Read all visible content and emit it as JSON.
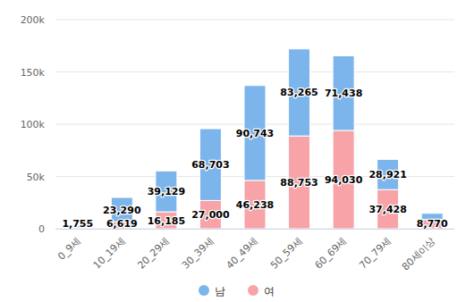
{
  "chart_data": {
    "type": "bar",
    "stacked": true,
    "data_labels": true,
    "grid": true,
    "legend": "bottom",
    "categories": [
      "0_9세",
      "10_19세",
      "20_29세",
      "30_39세",
      "40_49세",
      "50_59세",
      "60_69세",
      "70_79세",
      "80세이상"
    ],
    "series": [
      {
        "name": "남",
        "color": "#7cb5ec",
        "values": [
          1755,
          23290,
          39129,
          68703,
          90743,
          83265,
          71438,
          28921,
          6000
        ],
        "value_labels": [
          "1,755",
          "23,290",
          "39,129",
          "68,703",
          "90,743",
          "83,265",
          "71,438",
          "28,921",
          null
        ]
      },
      {
        "name": "여",
        "color": "#f7a3a8",
        "values": [
          900,
          6619,
          16185,
          27000,
          46238,
          88753,
          94030,
          37428,
          8770
        ],
        "value_labels": [
          null,
          "6,619",
          "16,185",
          "27,000",
          "46,238",
          "88,753",
          "94,030",
          "37,428",
          "8,770"
        ]
      }
    ],
    "ylim": [
      0,
      200000
    ],
    "yticks": [
      {
        "value": 0,
        "label": "0"
      },
      {
        "value": 50000,
        "label": "50k"
      },
      {
        "value": 100000,
        "label": "100k"
      },
      {
        "value": 150000,
        "label": "150k"
      },
      {
        "value": 200000,
        "label": "200k"
      }
    ]
  }
}
